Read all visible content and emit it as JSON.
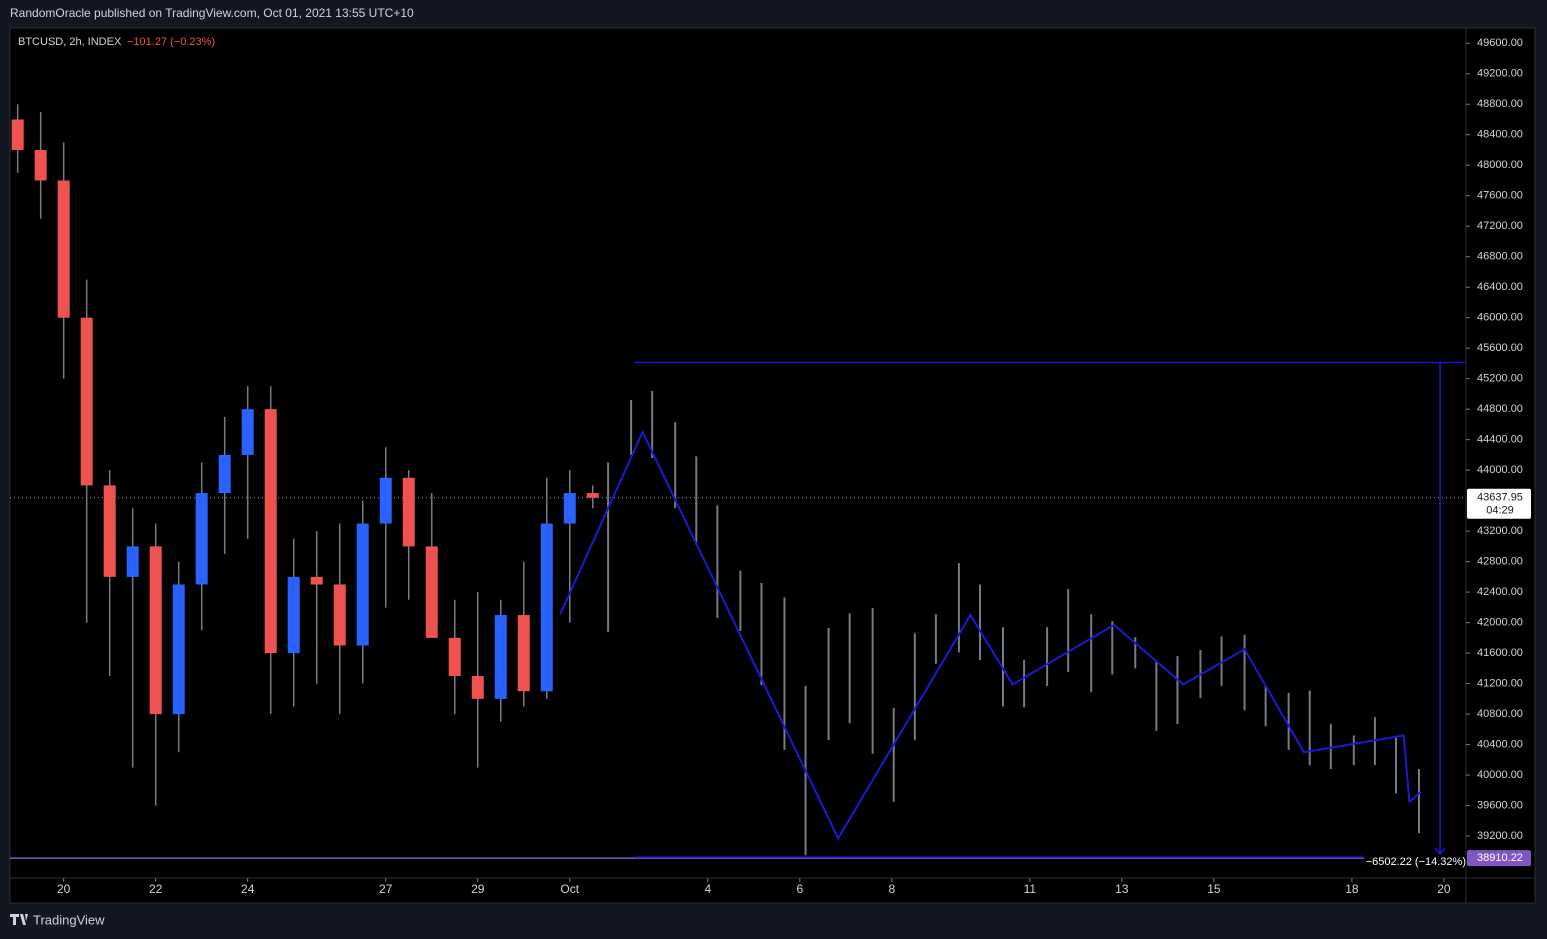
{
  "chart_data": {
    "type": "candlestick",
    "header": "RandomOracle published on TradingView.com, Oct 01, 2021 13:55 UTC+10",
    "symbol": "BTCUSD, 2h, INDEX",
    "change": "−101.27 (−0.23%)",
    "footer": "TradingView",
    "up_color": "#2962ff",
    "down_color": "#ef5350",
    "wick_color": "#787b86",
    "candles": {
      "x": [
        "2021-09-19T00:00",
        "2021-09-19T12:00",
        "2021-09-20T00:00",
        "2021-09-20T12:00",
        "2021-09-21T00:00",
        "2021-09-21T12:00",
        "2021-09-22T00:00",
        "2021-09-22T12:00",
        "2021-09-23T00:00",
        "2021-09-23T12:00",
        "2021-09-24T00:00",
        "2021-09-24T12:00",
        "2021-09-25T00:00",
        "2021-09-25T12:00",
        "2021-09-26T00:00",
        "2021-09-26T12:00",
        "2021-09-27T00:00",
        "2021-09-27T12:00",
        "2021-09-28T00:00",
        "2021-09-28T12:00",
        "2021-09-29T00:00",
        "2021-09-29T12:00",
        "2021-09-30T00:00",
        "2021-09-30T12:00",
        "2021-10-01T00:00",
        "2021-10-01T12:00"
      ],
      "open": [
        48600,
        48200,
        47800,
        46000,
        43800,
        42600,
        43000,
        40800,
        42500,
        43700,
        44200,
        44800,
        41600,
        42600,
        42500,
        41700,
        43300,
        43900,
        43000,
        41800,
        41300,
        41000,
        42100,
        41100,
        43300,
        43700
      ],
      "high": [
        48800,
        48700,
        48300,
        46500,
        44000,
        43500,
        43300,
        42800,
        44100,
        44700,
        45100,
        45100,
        43100,
        43200,
        43300,
        43600,
        44300,
        44000,
        43700,
        42300,
        42400,
        42300,
        42800,
        43900,
        44000,
        43800
      ],
      "low": [
        47900,
        47300,
        45200,
        42000,
        41300,
        40100,
        39600,
        40300,
        41900,
        42900,
        43100,
        40800,
        40900,
        41200,
        40800,
        41200,
        42200,
        42300,
        41800,
        40800,
        40100,
        40700,
        40900,
        41000,
        42000,
        43500
      ],
      "close": [
        48200,
        47800,
        46000,
        43800,
        42600,
        43000,
        40800,
        42500,
        43700,
        44200,
        44800,
        41600,
        42600,
        42500,
        41700,
        43300,
        43900,
        43000,
        41800,
        41300,
        41000,
        42100,
        41100,
        43300,
        43700,
        43637.95
      ]
    },
    "projection_bars": {
      "color": "#787b86",
      "x": [
        "2021-10-01T20:00",
        "2021-10-02T08:00",
        "2021-10-02T19:00",
        "2021-10-03T07:00",
        "2021-10-03T18:00",
        "2021-10-04T05:00",
        "2021-10-04T17:00",
        "2021-10-05T04:00",
        "2021-10-05T16:00",
        "2021-10-06T03:00",
        "2021-10-06T15:00",
        "2021-10-07T02:00",
        "2021-10-07T14:00",
        "2021-10-08T01:00",
        "2021-10-08T12:00",
        "2021-10-08T23:00",
        "2021-10-09T11:00",
        "2021-10-09T22:00",
        "2021-10-10T10:00",
        "2021-10-10T21:00",
        "2021-10-11T09:00",
        "2021-10-11T20:00",
        "2021-10-12T08:00",
        "2021-10-12T19:00",
        "2021-10-13T07:00",
        "2021-10-13T18:00",
        "2021-10-14T05:00",
        "2021-10-14T17:00",
        "2021-10-15T04:00",
        "2021-10-15T16:00",
        "2021-10-16T03:00",
        "2021-10-16T15:00",
        "2021-10-17T02:00",
        "2021-10-17T13:00",
        "2021-10-18T01:00",
        "2021-10-18T12:00",
        "2021-10-18T23:00",
        "2021-10-19T11:00"
      ],
      "high": [
        44100,
        44920,
        45040,
        44630,
        44180,
        43540,
        42680,
        42520,
        42330,
        41170,
        41930,
        42120,
        42190,
        40880,
        41860,
        42110,
        42780,
        42500,
        41940,
        41510,
        41940,
        42440,
        42110,
        42020,
        41810,
        41500,
        41560,
        41640,
        41820,
        41840,
        41180,
        41080,
        41110,
        40670,
        40520,
        40760,
        40500,
        40080
      ],
      "low": [
        41880,
        44200,
        44160,
        43500,
        43020,
        42060,
        41890,
        41180,
        40330,
        38950,
        40460,
        40680,
        40280,
        39650,
        40460,
        41460,
        41610,
        41510,
        40900,
        40890,
        41170,
        41350,
        41090,
        41320,
        41400,
        40580,
        40670,
        41010,
        41170,
        40850,
        40640,
        40330,
        40130,
        40080,
        40130,
        40130,
        39760,
        39240
      ]
    },
    "projection_path": {
      "color": "#1a1ad6",
      "x": [
        "2021-09-30T19:00",
        "2021-10-02T14:00",
        "2021-10-06T20:00",
        "2021-10-09T17:00",
        "2021-10-10T15:00",
        "2021-10-12T20:00",
        "2021-10-14T08:00",
        "2021-10-15T16:00",
        "2021-10-16T23:00",
        "2021-10-19T03:00",
        "2021-10-19T06:00",
        "2021-10-19T12:00"
      ],
      "values": [
        42110,
        44500,
        39170,
        42100,
        41190,
        41970,
        41190,
        41650,
        40300,
        40520,
        39650,
        39780
      ]
    },
    "last_price": {
      "value": 43637.95,
      "countdown": "04:29"
    },
    "support_line": {
      "value": 38910.22,
      "color": "#7e57c2"
    },
    "measure": {
      "color": "#1a1ad6",
      "x": [
        "2021-10-02T10:00",
        "2021-10-19T22:00"
      ],
      "from": 45412.44,
      "to": 38910.22,
      "label": "−6502.22 (−14.32%)"
    },
    "ylim": [
      38650,
      49800
    ],
    "yticks": [
      {
        "value": 39200,
        "label": "39200.00"
      },
      {
        "value": 39600,
        "label": "39600.00"
      },
      {
        "value": 40000,
        "label": "40000.00"
      },
      {
        "value": 40400,
        "label": "40400.00"
      },
      {
        "value": 40800,
        "label": "40800.00"
      },
      {
        "value": 41200,
        "label": "41200.00"
      },
      {
        "value": 41600,
        "label": "41600.00"
      },
      {
        "value": 42000,
        "label": "42000.00"
      },
      {
        "value": 42400,
        "label": "42400.00"
      },
      {
        "value": 42800,
        "label": "42800.00"
      },
      {
        "value": 43200,
        "label": "43200.00"
      },
      {
        "value": 44000,
        "label": "44000.00"
      },
      {
        "value": 44400,
        "label": "44400.00"
      },
      {
        "value": 44800,
        "label": "44800.00"
      },
      {
        "value": 45200,
        "label": "45200.00"
      },
      {
        "value": 45600,
        "label": "45600.00"
      },
      {
        "value": 46000,
        "label": "46000.00"
      },
      {
        "value": 46400,
        "label": "46400.00"
      },
      {
        "value": 46800,
        "label": "46800.00"
      },
      {
        "value": 47200,
        "label": "47200.00"
      },
      {
        "value": 47600,
        "label": "47600.00"
      },
      {
        "value": 48000,
        "label": "48000.00"
      },
      {
        "value": 48400,
        "label": "48400.00"
      },
      {
        "value": 48800,
        "label": "48800.00"
      },
      {
        "value": 49200,
        "label": "49200.00"
      },
      {
        "value": 49600,
        "label": "49600.00"
      }
    ],
    "xlim": [
      "2021-09-18T20:00",
      "2021-10-20T11:00"
    ],
    "xticks": [
      {
        "value": "2021-09-20",
        "label": "20"
      },
      {
        "value": "2021-09-22",
        "label": "22"
      },
      {
        "value": "2021-09-24",
        "label": "24"
      },
      {
        "value": "2021-09-27",
        "label": "27"
      },
      {
        "value": "2021-09-29",
        "label": "29"
      },
      {
        "value": "2021-10-01",
        "label": "Oct"
      },
      {
        "value": "2021-10-04",
        "label": "4"
      },
      {
        "value": "2021-10-06",
        "label": "6"
      },
      {
        "value": "2021-10-08",
        "label": "8"
      },
      {
        "value": "2021-10-11",
        "label": "11"
      },
      {
        "value": "2021-10-13",
        "label": "13"
      },
      {
        "value": "2021-10-15",
        "label": "15"
      },
      {
        "value": "2021-10-18",
        "label": "18"
      },
      {
        "value": "2021-10-20",
        "label": "20"
      }
    ]
  }
}
